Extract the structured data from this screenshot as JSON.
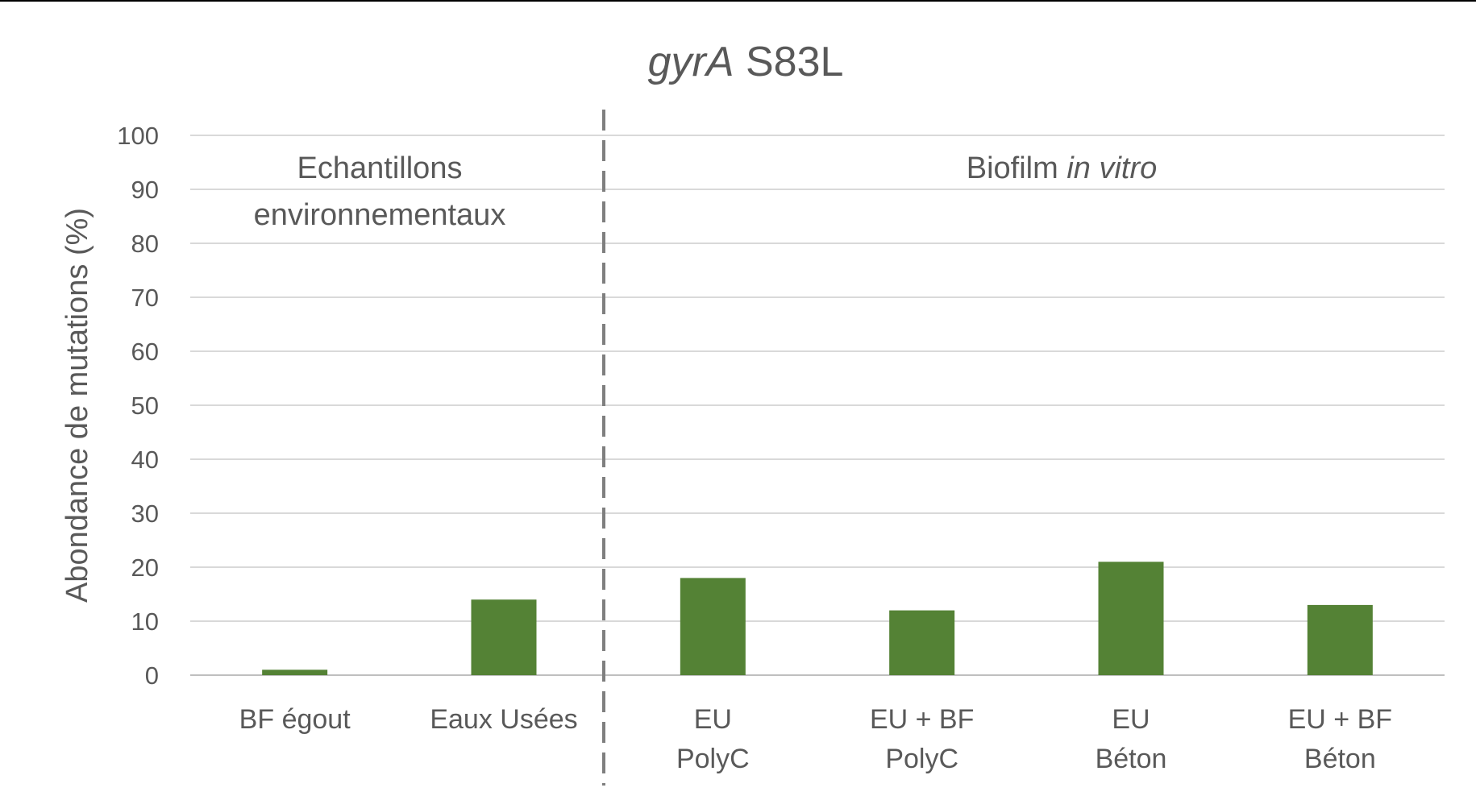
{
  "chart_data": {
    "type": "bar",
    "title_italic": "gyrA",
    "title_rest": " S83L",
    "ylabel": "Abondance de mutations (%)",
    "xlabel": "",
    "ylim": [
      0,
      100
    ],
    "yticks": [
      0,
      10,
      20,
      30,
      40,
      50,
      60,
      70,
      80,
      90,
      100
    ],
    "grid": true,
    "bar_color": "#548235",
    "categories": [
      [
        "BF égout"
      ],
      [
        "Eaux Usées"
      ],
      [
        "EU",
        "PolyC"
      ],
      [
        "EU + BF",
        "PolyC"
      ],
      [
        "EU",
        "Béton"
      ],
      [
        "EU + BF",
        "Béton"
      ]
    ],
    "values": [
      1,
      14,
      18,
      12,
      21,
      13
    ],
    "sections": [
      {
        "lines": [
          "Echantillons",
          "environnementaux"
        ]
      },
      {
        "prefix": "Biofilm ",
        "italic": "in vitro"
      }
    ]
  }
}
